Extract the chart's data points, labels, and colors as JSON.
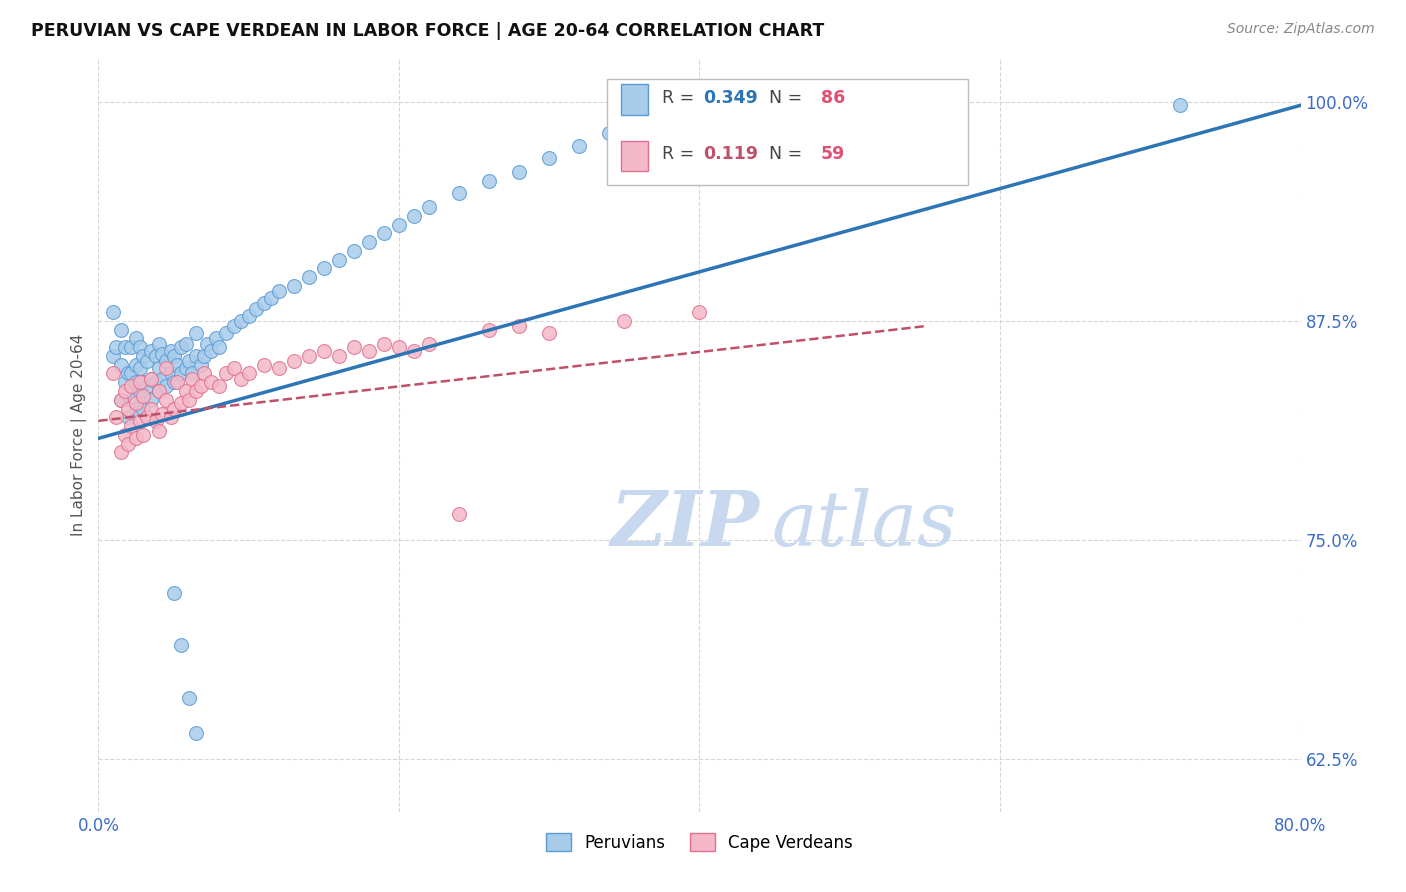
{
  "title": "PERUVIAN VS CAPE VERDEAN IN LABOR FORCE | AGE 20-64 CORRELATION CHART",
  "source": "Source: ZipAtlas.com",
  "ylabel": "In Labor Force | Age 20-64",
  "xlim": [
    0.0,
    0.8
  ],
  "ylim": [
    0.595,
    1.025
  ],
  "xticks": [
    0.0,
    0.2,
    0.4,
    0.6,
    0.8
  ],
  "xticklabels": [
    "0.0%",
    "",
    "",
    "",
    "80.0%"
  ],
  "yticks": [
    0.625,
    0.75,
    0.875,
    1.0
  ],
  "yticklabels": [
    "62.5%",
    "75.0%",
    "87.5%",
    "100.0%"
  ],
  "R_blue": 0.349,
  "N_blue": 86,
  "R_pink": 0.119,
  "N_pink": 59,
  "blue_color": "#A8CCEA",
  "blue_edge_color": "#5B9BD5",
  "blue_line_color": "#2E75B6",
  "pink_color": "#F4B8C8",
  "pink_edge_color": "#E07090",
  "pink_line_color": "#C0506A",
  "legend_R_blue_color": "#2E75B6",
  "legend_R_pink_color": "#C0506A",
  "legend_N_color": "#E05070",
  "watermark_color": "#C8D8EE",
  "background_color": "#FFFFFF",
  "grid_color": "#CCCCCC",
  "blue_scatter_x": [
    0.01,
    0.01,
    0.012,
    0.015,
    0.015,
    0.015,
    0.018,
    0.018,
    0.02,
    0.02,
    0.022,
    0.022,
    0.022,
    0.025,
    0.025,
    0.025,
    0.025,
    0.028,
    0.028,
    0.028,
    0.03,
    0.03,
    0.03,
    0.032,
    0.032,
    0.035,
    0.035,
    0.035,
    0.038,
    0.038,
    0.04,
    0.04,
    0.04,
    0.042,
    0.042,
    0.045,
    0.045,
    0.048,
    0.048,
    0.05,
    0.05,
    0.052,
    0.055,
    0.055,
    0.058,
    0.058,
    0.06,
    0.062,
    0.065,
    0.065,
    0.068,
    0.07,
    0.072,
    0.075,
    0.078,
    0.08,
    0.085,
    0.09,
    0.095,
    0.1,
    0.105,
    0.11,
    0.115,
    0.12,
    0.13,
    0.14,
    0.15,
    0.16,
    0.17,
    0.18,
    0.19,
    0.2,
    0.21,
    0.22,
    0.24,
    0.26,
    0.28,
    0.3,
    0.32,
    0.34,
    0.05,
    0.055,
    0.06,
    0.065,
    0.38,
    0.72
  ],
  "blue_scatter_y": [
    0.855,
    0.88,
    0.86,
    0.83,
    0.85,
    0.87,
    0.84,
    0.86,
    0.82,
    0.845,
    0.83,
    0.845,
    0.86,
    0.825,
    0.84,
    0.85,
    0.865,
    0.835,
    0.848,
    0.86,
    0.825,
    0.84,
    0.855,
    0.838,
    0.852,
    0.83,
    0.842,
    0.858,
    0.84,
    0.855,
    0.835,
    0.848,
    0.862,
    0.842,
    0.856,
    0.838,
    0.852,
    0.845,
    0.858,
    0.84,
    0.855,
    0.85,
    0.845,
    0.86,
    0.848,
    0.862,
    0.852,
    0.845,
    0.855,
    0.868,
    0.85,
    0.855,
    0.862,
    0.858,
    0.865,
    0.86,
    0.868,
    0.872,
    0.875,
    0.878,
    0.882,
    0.885,
    0.888,
    0.892,
    0.895,
    0.9,
    0.905,
    0.91,
    0.915,
    0.92,
    0.925,
    0.93,
    0.935,
    0.94,
    0.948,
    0.955,
    0.96,
    0.968,
    0.975,
    0.982,
    0.72,
    0.69,
    0.66,
    0.64,
    0.99,
    0.998
  ],
  "pink_scatter_x": [
    0.01,
    0.012,
    0.015,
    0.015,
    0.018,
    0.018,
    0.02,
    0.02,
    0.022,
    0.022,
    0.025,
    0.025,
    0.028,
    0.028,
    0.03,
    0.03,
    0.032,
    0.035,
    0.035,
    0.038,
    0.04,
    0.04,
    0.042,
    0.045,
    0.045,
    0.048,
    0.05,
    0.052,
    0.055,
    0.058,
    0.06,
    0.062,
    0.065,
    0.068,
    0.07,
    0.075,
    0.08,
    0.085,
    0.09,
    0.095,
    0.1,
    0.11,
    0.12,
    0.13,
    0.14,
    0.15,
    0.16,
    0.17,
    0.18,
    0.19,
    0.2,
    0.21,
    0.22,
    0.24,
    0.26,
    0.28,
    0.3,
    0.35,
    0.4
  ],
  "pink_scatter_y": [
    0.845,
    0.82,
    0.8,
    0.83,
    0.81,
    0.835,
    0.805,
    0.825,
    0.815,
    0.838,
    0.808,
    0.828,
    0.818,
    0.84,
    0.81,
    0.832,
    0.82,
    0.825,
    0.842,
    0.818,
    0.812,
    0.835,
    0.822,
    0.83,
    0.848,
    0.82,
    0.825,
    0.84,
    0.828,
    0.835,
    0.83,
    0.842,
    0.835,
    0.838,
    0.845,
    0.84,
    0.838,
    0.845,
    0.848,
    0.842,
    0.845,
    0.85,
    0.848,
    0.852,
    0.855,
    0.858,
    0.855,
    0.86,
    0.858,
    0.862,
    0.86,
    0.858,
    0.862,
    0.765,
    0.87,
    0.872,
    0.868,
    0.875,
    0.88
  ],
  "blue_trendline_x": [
    0.0,
    0.8
  ],
  "blue_trendline_y": [
    0.808,
    0.998
  ],
  "pink_trendline_x": [
    0.0,
    0.55
  ],
  "pink_trendline_y": [
    0.818,
    0.872
  ]
}
